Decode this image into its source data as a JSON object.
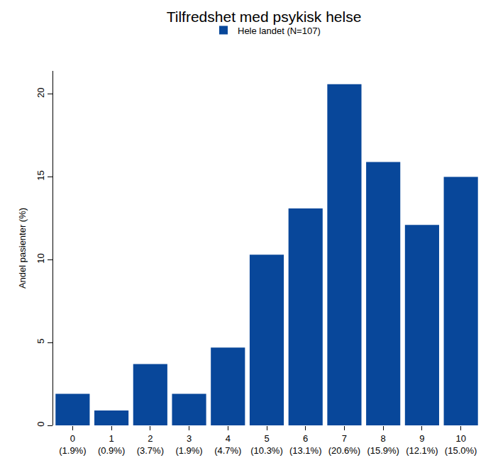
{
  "chart_data": {
    "type": "bar",
    "title": "Tilfredshet med psykisk helse",
    "y_label": "Andel pasienter (%)",
    "categories": [
      "0",
      "1",
      "2",
      "3",
      "4",
      "5",
      "6",
      "7",
      "8",
      "9",
      "10"
    ],
    "series": [
      {
        "name": "Hele landet (N=107)",
        "color": "#08479a",
        "values": [
          1.9,
          0.9,
          3.7,
          1.9,
          4.7,
          10.3,
          13.1,
          20.6,
          15.9,
          12.1,
          15.0
        ],
        "value_labels": [
          "(1.9%)",
          "(0.9%)",
          "(3.7%)",
          "(1.9%)",
          "(4.7%)",
          "(10.3%)",
          "(13.1%)",
          "(20.6%)",
          "(15.9%)",
          "(12.1%)",
          "(15.0%)"
        ]
      }
    ],
    "ylim": [
      0,
      21.4
    ],
    "yticks": [
      0,
      5,
      10,
      15,
      20
    ],
    "grid": false,
    "legend": "top"
  }
}
